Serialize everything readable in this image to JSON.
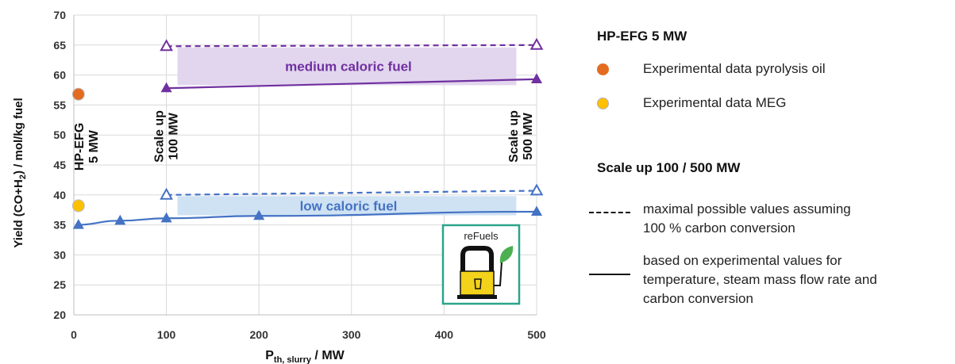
{
  "chart_data": {
    "type": "line",
    "xlabel_main": "P",
    "xlabel_sub": "th, slurry",
    "xlabel_unit": " / MW",
    "ylabel_pre": "Yield (CO+H",
    "ylabel_sub": "2",
    "ylabel_post": ") / mol/kg fuel",
    "xlim": [
      0,
      500
    ],
    "ylim": [
      20,
      70
    ],
    "xticks": [
      0,
      100,
      200,
      300,
      400,
      500
    ],
    "yticks": [
      20,
      25,
      30,
      35,
      40,
      45,
      50,
      55,
      60,
      65,
      70
    ],
    "grid": true,
    "series": [
      {
        "key": "medium_max",
        "color": "#7030a0",
        "style": "dashed",
        "marker": "triangle-open",
        "x": [
          100,
          500
        ],
        "y": [
          64.8,
          65.0
        ]
      },
      {
        "key": "medium_exp",
        "color": "#7030a0",
        "style": "solid",
        "marker": "triangle",
        "x": [
          100,
          500
        ],
        "y": [
          57.8,
          59.3
        ]
      },
      {
        "key": "low_max",
        "color": "#4472c4",
        "style": "dashed",
        "marker": "triangle-open",
        "x": [
          100,
          500
        ],
        "y": [
          40.0,
          40.7
        ]
      },
      {
        "key": "low_exp",
        "color": "#4472c4",
        "style": "solid",
        "marker": "triangle",
        "x": [
          5,
          50,
          100,
          200,
          500
        ],
        "y": [
          35.0,
          35.7,
          36.1,
          36.5,
          37.2
        ]
      }
    ],
    "points": [
      {
        "key": "pyrolysis_oil",
        "x": 5,
        "y": 56.8,
        "color": "#e36c21"
      },
      {
        "key": "meg",
        "x": 5,
        "y": 38.2,
        "color": "#ffc000"
      }
    ],
    "bands": [
      {
        "label": "medium caloric fuel",
        "x0": 112,
        "x1": 478,
        "y0": 58.3,
        "y1": 64.6,
        "fill": "#e2d6ee",
        "text_color": "#7030a0",
        "label_y": 61.5
      },
      {
        "label": "low caloric fuel",
        "x0": 112,
        "x1": 478,
        "y0": 36.6,
        "y1": 39.8,
        "fill": "#cfe2f3",
        "text_color": "#4472c4",
        "label_y": 38.2
      }
    ],
    "annotations": [
      {
        "lines": [
          "HP-EFG",
          "5 MW"
        ],
        "x": 5
      },
      {
        "lines": [
          "Scale up",
          "100 MW"
        ],
        "x": 100
      },
      {
        "lines": [
          "Scale up",
          "500 MW"
        ],
        "x": 500
      }
    ],
    "logo": {
      "text": "reFuels",
      "border": "#2aa58a"
    }
  },
  "legend": {
    "heading1": "HP-EFG 5 MW",
    "item_pyrolysis": "Experimental data pyrolysis oil",
    "item_meg": "Experimental data MEG",
    "heading2": "Scale up 100 / 500 MW",
    "dashed_line1": "maximal possible values assuming",
    "dashed_line2": "100 % carbon conversion",
    "solid_line1": "based on experimental values for",
    "solid_line2": "temperature, steam mass flow rate and",
    "solid_line3": "carbon conversion",
    "colors": {
      "pyrolysis": "#e36c21",
      "meg": "#ffc000"
    }
  }
}
